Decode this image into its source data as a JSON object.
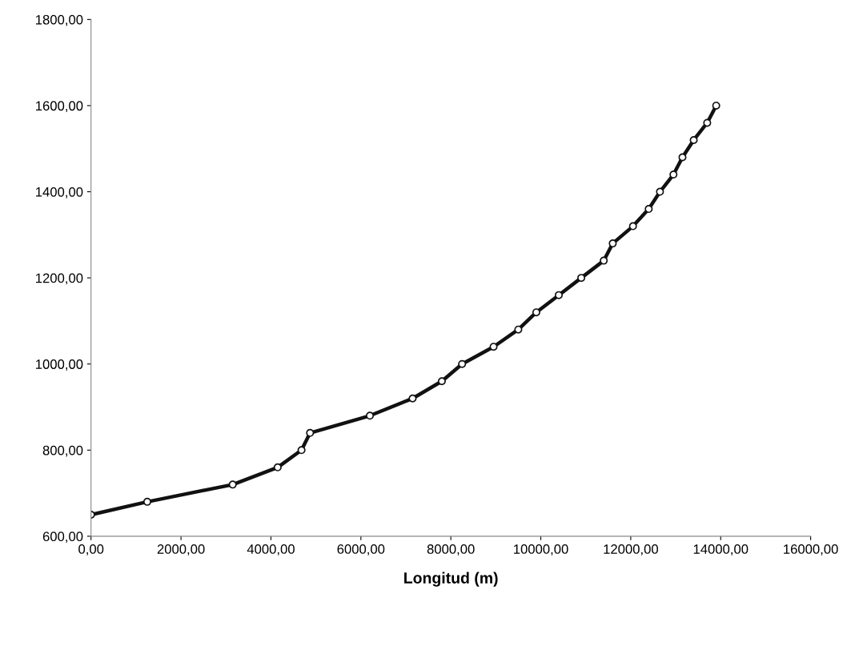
{
  "chart_data": {
    "type": "line",
    "xlabel": "Longitud (m)",
    "x": [
      0,
      1250,
      3150,
      4150,
      4680,
      4870,
      6200,
      7150,
      7800,
      8250,
      8950,
      9500,
      9900,
      10400,
      10900,
      11400,
      11600,
      12050,
      12400,
      12650,
      12950,
      13150,
      13400,
      13700,
      13900
    ],
    "series": [
      {
        "color": "#111111",
        "values": [
          650,
          680,
          720,
          760,
          800,
          840,
          880,
          920,
          960,
          1000,
          1040,
          1080,
          1120,
          1160,
          1200,
          1240,
          1280,
          1320,
          1360,
          1400,
          1440,
          1480,
          1520,
          1560,
          1600
        ]
      }
    ],
    "xlim": [
      0,
      16000
    ],
    "ylim": [
      600,
      1800
    ],
    "xticks": [
      {
        "value": 0,
        "label": "0,00"
      },
      {
        "value": 2000,
        "label": "2000,00"
      },
      {
        "value": 4000,
        "label": "4000,00"
      },
      {
        "value": 6000,
        "label": "6000,00"
      },
      {
        "value": 8000,
        "label": "8000,00"
      },
      {
        "value": 10000,
        "label": "10000,00"
      },
      {
        "value": 12000,
        "label": "12000,00"
      },
      {
        "value": 14000,
        "label": "14000,00"
      },
      {
        "value": 16000,
        "label": "16000,00"
      }
    ],
    "yticks": [
      {
        "value": 600,
        "label": "600,00"
      },
      {
        "value": 800,
        "label": "800,00"
      },
      {
        "value": 1000,
        "label": "1000,00"
      },
      {
        "value": 1200,
        "label": "1200,00"
      },
      {
        "value": 1400,
        "label": "1400,00"
      },
      {
        "value": 1600,
        "label": "1600,00"
      },
      {
        "value": 1800,
        "label": "1800,00"
      }
    ],
    "marker": "circle",
    "line_style": "solid"
  }
}
